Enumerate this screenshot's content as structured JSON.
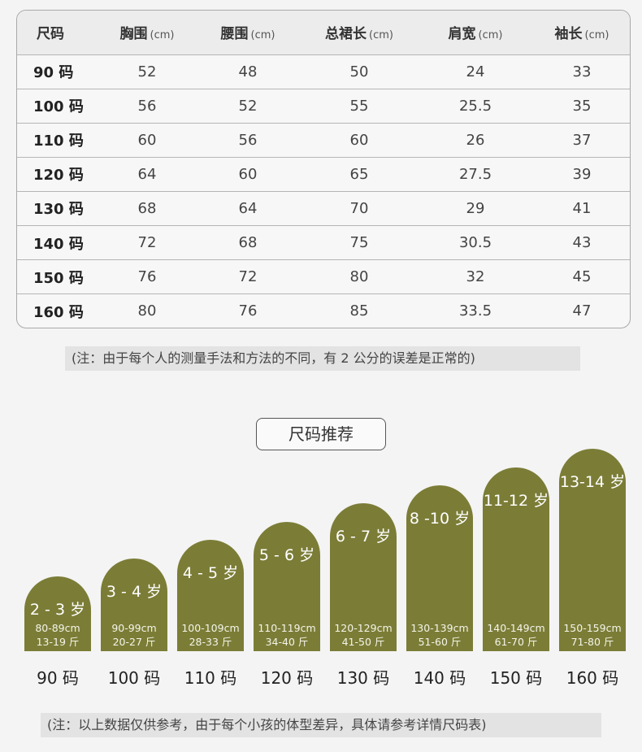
{
  "size_table": {
    "headers": [
      {
        "label": "尺码",
        "unit": ""
      },
      {
        "label": "胸围",
        "unit": "(cm)"
      },
      {
        "label": "腰围",
        "unit": "(cm)"
      },
      {
        "label": "总裙长",
        "unit": "(cm)"
      },
      {
        "label": "肩宽",
        "unit": "(cm)"
      },
      {
        "label": "袖长",
        "unit": "(cm)"
      }
    ],
    "rows": [
      [
        "90 码",
        "52",
        "48",
        "50",
        "24",
        "33"
      ],
      [
        "100 码",
        "56",
        "52",
        "55",
        "25.5",
        "35"
      ],
      [
        "110 码",
        "60",
        "56",
        "60",
        "26",
        "37"
      ],
      [
        "120 码",
        "64",
        "60",
        "65",
        "27.5",
        "39"
      ],
      [
        "130 码",
        "68",
        "64",
        "70",
        "29",
        "41"
      ],
      [
        "140 码",
        "72",
        "68",
        "75",
        "30.5",
        "43"
      ],
      [
        "150 码",
        "76",
        "72",
        "80",
        "32",
        "45"
      ],
      [
        "160 码",
        "80",
        "76",
        "85",
        "33.5",
        "47"
      ]
    ]
  },
  "note_measurement": "(注：由于每个人的测量手法和方法的不同，有 2 公分的误差是正常的)",
  "recommend_title": "尺码推荐",
  "chart_data": {
    "type": "bar",
    "categories": [
      "90 码",
      "100 码",
      "110 码",
      "120 码",
      "130 码",
      "140 码",
      "150 码",
      "160 码"
    ],
    "ages": [
      "2 - 3 岁",
      "3 - 4 岁",
      "4 - 5 岁",
      "5 - 6 岁",
      "6 - 7 岁",
      "8 -10 岁",
      "11-12 岁",
      "13-14 岁"
    ],
    "heights": [
      "80-89cm",
      "90-99cm",
      "100-109cm",
      "110-119cm",
      "120-129cm",
      "130-139cm",
      "140-149cm",
      "150-159cm"
    ],
    "weights": [
      "13-19 斤",
      "20-27 斤",
      "28-33 斤",
      "34-40 斤",
      "41-50 斤",
      "51-60 斤",
      "61-70 斤",
      "71-80 斤"
    ],
    "values": [
      1,
      2,
      3,
      4,
      5,
      6,
      7,
      8
    ],
    "bar_color": "#7b7d37"
  },
  "note_disclaimer": "(注：以上数据仅供参考，由于每个小孩的体型差异，具体请参考详情尺码表)"
}
